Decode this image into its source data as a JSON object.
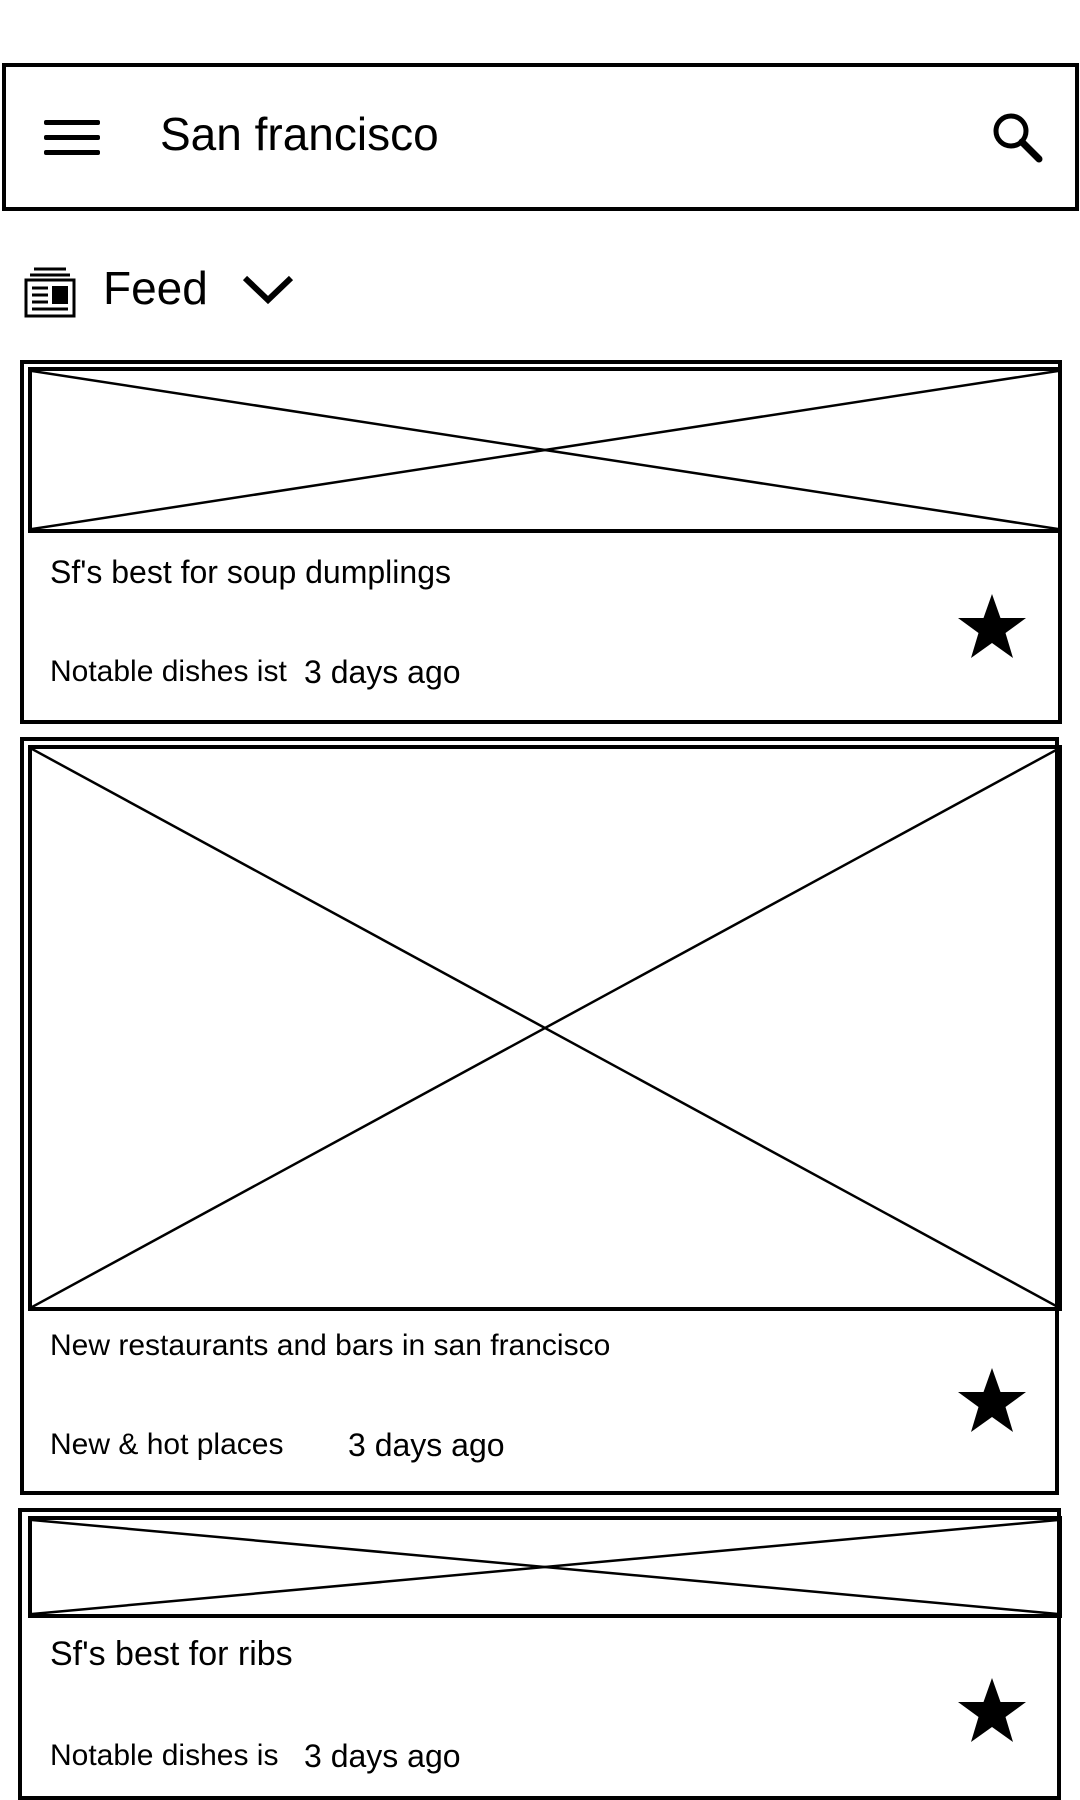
{
  "search_bar": {
    "query": "San francisco",
    "menu_icon": "hamburger-menu-icon",
    "search_icon": "search-icon"
  },
  "feed_header": {
    "icon": "newspaper-icon",
    "label": "Feed",
    "chevron_icon": "chevron-down-icon"
  },
  "cards": [
    {
      "title": "Sf's best for soup dumplings",
      "meta": "Notable dishes ist",
      "time": "3 days ago",
      "image": "image-placeholder",
      "star_icon": "star-icon"
    },
    {
      "title": "New restaurants and bars in san francisco",
      "meta": "New & hot places",
      "time": "3 days ago",
      "image": "image-placeholder",
      "star_icon": "star-icon"
    },
    {
      "title": "Sf's best for ribs",
      "meta": "Notable dishes is",
      "time": "3 days ago",
      "image": "image-placeholder",
      "star_icon": "star-icon"
    }
  ]
}
